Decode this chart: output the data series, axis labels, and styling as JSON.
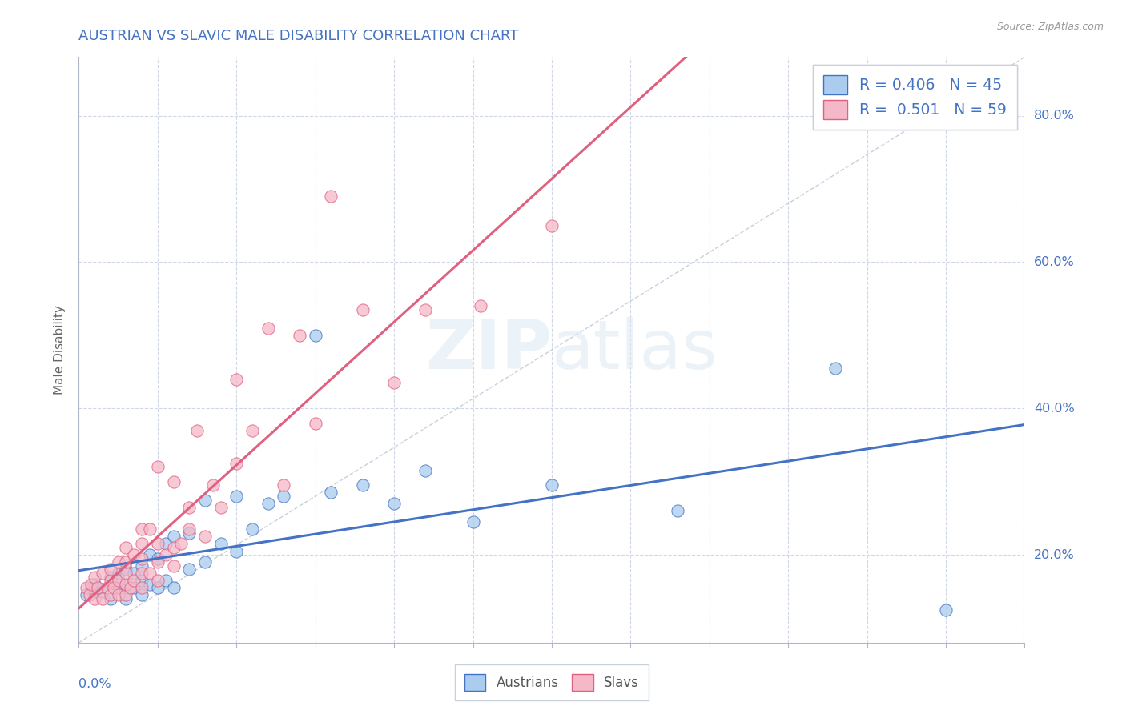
{
  "title": "AUSTRIAN VS SLAVIC MALE DISABILITY CORRELATION CHART",
  "source_text": "Source: ZipAtlas.com",
  "ylabel": "Male Disability",
  "xlim": [
    0.0,
    0.6
  ],
  "ylim": [
    0.08,
    0.88
  ],
  "yticks": [
    0.2,
    0.4,
    0.6,
    0.8
  ],
  "ytick_labels": [
    "20.0%",
    "40.0%",
    "60.0%",
    "80.0%"
  ],
  "legend_r_austrians": "0.406",
  "legend_n_austrians": "45",
  "legend_r_slavs": "0.501",
  "legend_n_slavs": "59",
  "austrian_color": "#aaccee",
  "slav_color": "#f4b8c8",
  "austrian_line_color": "#4472c4",
  "slav_line_color": "#e06080",
  "diagonal_color": "#c8d0dc",
  "background_color": "#ffffff",
  "grid_color": "#d0d8e8",
  "austrians_x": [
    0.005,
    0.008,
    0.01,
    0.01,
    0.015,
    0.02,
    0.02,
    0.025,
    0.025,
    0.03,
    0.03,
    0.03,
    0.035,
    0.035,
    0.04,
    0.04,
    0.04,
    0.045,
    0.045,
    0.05,
    0.05,
    0.055,
    0.055,
    0.06,
    0.06,
    0.07,
    0.07,
    0.08,
    0.08,
    0.09,
    0.1,
    0.1,
    0.11,
    0.12,
    0.13,
    0.15,
    0.16,
    0.18,
    0.2,
    0.22,
    0.25,
    0.3,
    0.38,
    0.48,
    0.55
  ],
  "austrians_y": [
    0.145,
    0.155,
    0.15,
    0.16,
    0.15,
    0.14,
    0.17,
    0.155,
    0.175,
    0.14,
    0.16,
    0.18,
    0.155,
    0.175,
    0.145,
    0.165,
    0.185,
    0.16,
    0.2,
    0.155,
    0.195,
    0.165,
    0.215,
    0.155,
    0.225,
    0.18,
    0.23,
    0.19,
    0.275,
    0.215,
    0.205,
    0.28,
    0.235,
    0.27,
    0.28,
    0.5,
    0.285,
    0.295,
    0.27,
    0.315,
    0.245,
    0.295,
    0.26,
    0.455,
    0.125
  ],
  "slavs_x": [
    0.005,
    0.007,
    0.008,
    0.01,
    0.01,
    0.012,
    0.015,
    0.015,
    0.018,
    0.02,
    0.02,
    0.02,
    0.022,
    0.025,
    0.025,
    0.025,
    0.03,
    0.03,
    0.03,
    0.03,
    0.03,
    0.033,
    0.035,
    0.035,
    0.04,
    0.04,
    0.04,
    0.04,
    0.04,
    0.045,
    0.045,
    0.05,
    0.05,
    0.05,
    0.05,
    0.055,
    0.06,
    0.06,
    0.06,
    0.065,
    0.07,
    0.07,
    0.075,
    0.08,
    0.085,
    0.09,
    0.1,
    0.1,
    0.11,
    0.12,
    0.13,
    0.14,
    0.15,
    0.16,
    0.18,
    0.2,
    0.22,
    0.255,
    0.3
  ],
  "slavs_y": [
    0.155,
    0.145,
    0.16,
    0.14,
    0.17,
    0.155,
    0.14,
    0.175,
    0.155,
    0.145,
    0.165,
    0.18,
    0.155,
    0.145,
    0.165,
    0.19,
    0.145,
    0.16,
    0.175,
    0.19,
    0.21,
    0.155,
    0.165,
    0.2,
    0.155,
    0.175,
    0.195,
    0.215,
    0.235,
    0.175,
    0.235,
    0.165,
    0.19,
    0.215,
    0.32,
    0.2,
    0.185,
    0.21,
    0.3,
    0.215,
    0.235,
    0.265,
    0.37,
    0.225,
    0.295,
    0.265,
    0.325,
    0.44,
    0.37,
    0.51,
    0.295,
    0.5,
    0.38,
    0.69,
    0.535,
    0.435,
    0.535,
    0.54,
    0.65
  ]
}
